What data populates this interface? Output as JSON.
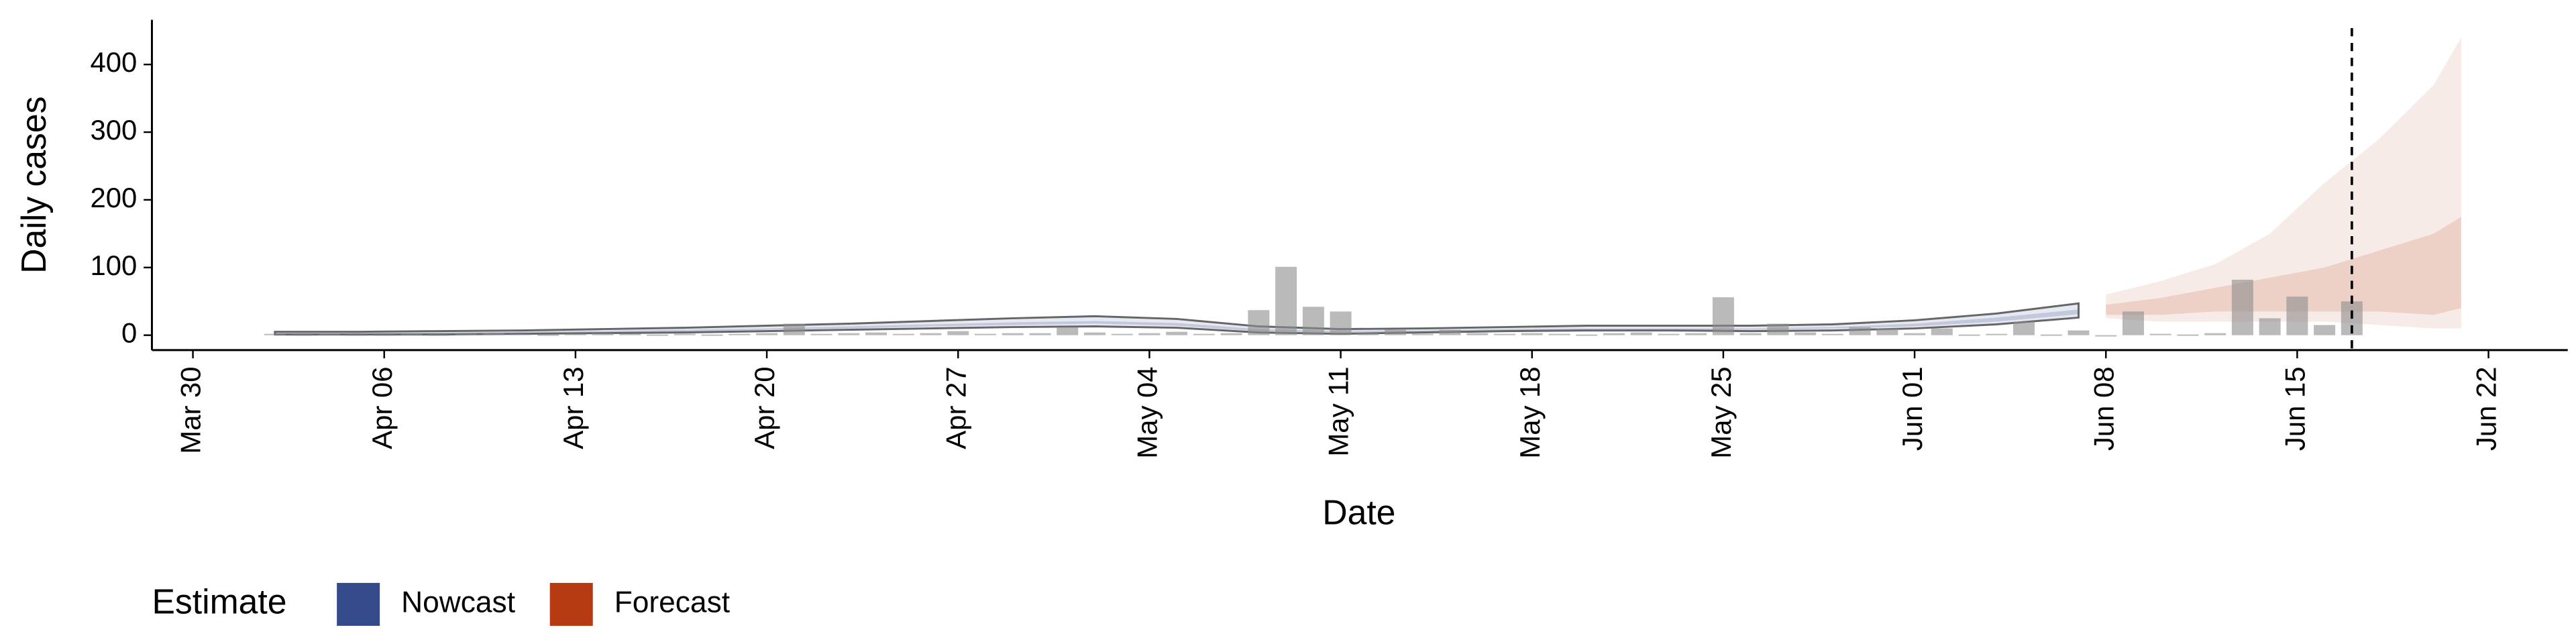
{
  "chart_data": {
    "type": "bar",
    "x_label": "Date",
    "y_label": "Daily cases",
    "x": [
      3,
      4,
      5,
      6,
      7,
      8,
      9,
      10,
      11,
      12,
      13,
      14,
      15,
      16,
      17,
      18,
      19,
      20,
      21,
      22,
      23,
      24,
      25,
      26,
      27,
      28,
      29,
      30,
      31,
      32,
      33,
      34,
      35,
      36,
      37,
      38,
      39,
      40,
      41,
      42,
      43,
      44,
      45,
      46,
      47,
      48,
      49,
      50,
      51,
      52,
      53,
      54,
      55,
      56,
      57,
      58,
      59,
      60,
      61,
      62,
      63,
      64,
      65,
      66,
      67,
      68,
      69,
      70,
      71,
      72,
      73,
      74,
      75,
      76,
      77,
      78,
      79
    ],
    "values": [
      2,
      1,
      2,
      1,
      1,
      2,
      1,
      2,
      3,
      2,
      1,
      2,
      3,
      2,
      1,
      2,
      1,
      2,
      3,
      17,
      2,
      3,
      4,
      2,
      3,
      6,
      2,
      3,
      3,
      12,
      4,
      2,
      3,
      5,
      2,
      3,
      37,
      101,
      42,
      35,
      3,
      8,
      2,
      8,
      3,
      2,
      3,
      2,
      1,
      3,
      4,
      2,
      3,
      56,
      3,
      17,
      4,
      2,
      12,
      10,
      3,
      10,
      1,
      2,
      20,
      1,
      7,
      0,
      35,
      2,
      1,
      3,
      82,
      25,
      57,
      15,
      50
    ],
    "color": "#8c8c8c",
    "estimates": [
      {
        "name": "Nowcast",
        "color": "#344a8a",
        "x": [
          3,
          6,
          9,
          12,
          15,
          18,
          21,
          24,
          27,
          30,
          33,
          36,
          39,
          42,
          45,
          48,
          51,
          54,
          57,
          60,
          63,
          66,
          69
        ],
        "upper90": [
          5,
          5,
          6,
          7,
          9,
          11,
          14,
          17,
          21,
          25,
          28,
          24,
          13,
          9,
          10,
          12,
          14,
          14,
          14,
          16,
          22,
          32,
          47
        ],
        "lower90": [
          1,
          1,
          1,
          2,
          3,
          4,
          6,
          8,
          10,
          12,
          13,
          11,
          4,
          2,
          4,
          6,
          7,
          7,
          6,
          7,
          10,
          16,
          26
        ],
        "upper50": [
          3,
          3,
          4,
          5,
          6,
          8,
          10,
          13,
          16,
          19,
          21,
          18,
          9,
          6,
          7,
          9,
          10,
          10,
          10,
          12,
          17,
          26,
          38
        ],
        "lower50": [
          2,
          2,
          2,
          3,
          4,
          5,
          8,
          10,
          13,
          15,
          17,
          14,
          6,
          4,
          5,
          7,
          8,
          8,
          8,
          10,
          13,
          20,
          31
        ]
      },
      {
        "name": "Forecast",
        "color": "#b53a11",
        "x": [
          70,
          72,
          74,
          76,
          78,
          80,
          82,
          83
        ],
        "upper90": [
          60,
          80,
          105,
          150,
          225,
          290,
          370,
          440
        ],
        "lower90": [
          25,
          20,
          20,
          20,
          20,
          15,
          10,
          10
        ],
        "upper50": [
          45,
          55,
          70,
          85,
          100,
          125,
          150,
          175
        ],
        "lower50": [
          30,
          30,
          35,
          35,
          35,
          35,
          30,
          40
        ]
      }
    ],
    "vline_x": 79,
    "legend_title": "Estimate",
    "xlim": [
      -1.5,
      86.9
    ],
    "ylim": [
      -22,
      466
    ],
    "xticks": [
      {
        "value": 0,
        "label": "Mar 30"
      },
      {
        "value": 7,
        "label": "Apr 06"
      },
      {
        "value": 14,
        "label": "Apr 13"
      },
      {
        "value": 21,
        "label": "Apr 20"
      },
      {
        "value": 28,
        "label": "Apr 27"
      },
      {
        "value": 35,
        "label": "May 04"
      },
      {
        "value": 42,
        "label": "May 11"
      },
      {
        "value": 49,
        "label": "May 18"
      },
      {
        "value": 56,
        "label": "May 25"
      },
      {
        "value": 63,
        "label": "Jun 01"
      },
      {
        "value": 70,
        "label": "Jun 08"
      },
      {
        "value": 77,
        "label": "Jun 15"
      },
      {
        "value": 84,
        "label": "Jun 22"
      }
    ],
    "yticks": [
      0,
      100,
      200,
      300,
      400
    ],
    "grid": false
  }
}
